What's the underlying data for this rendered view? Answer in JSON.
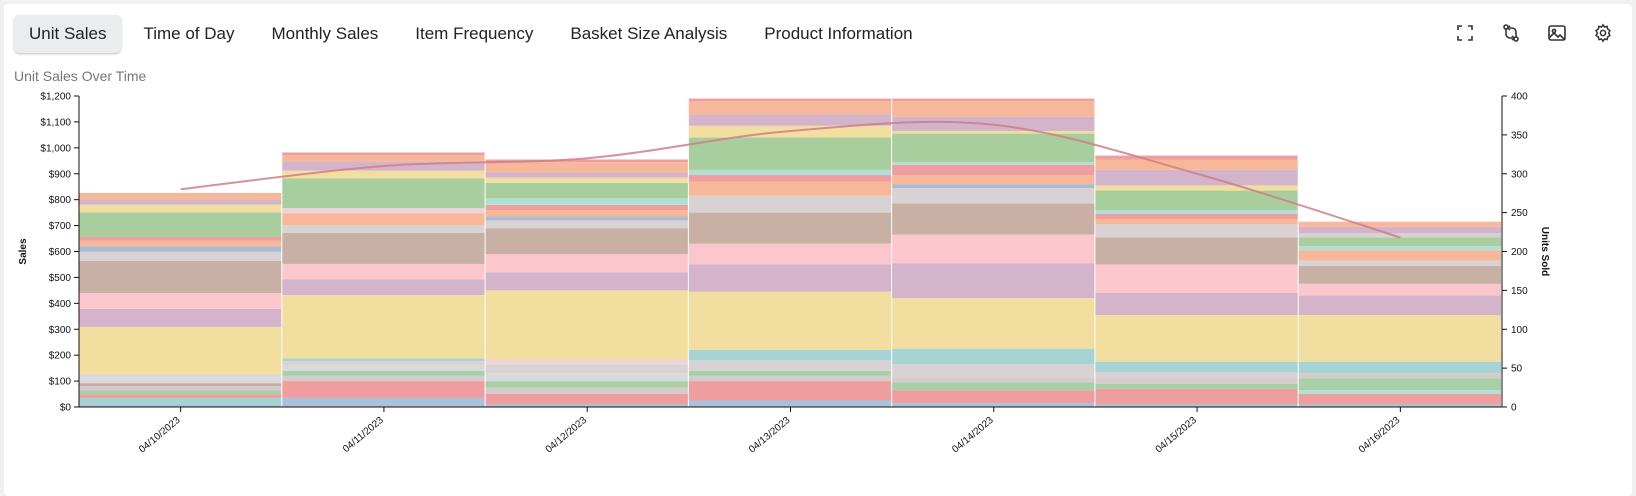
{
  "tabs": [
    {
      "label": "Unit Sales",
      "active": true
    },
    {
      "label": "Time of Day",
      "active": false
    },
    {
      "label": "Monthly Sales",
      "active": false
    },
    {
      "label": "Item Frequency",
      "active": false
    },
    {
      "label": "Basket Size Analysis",
      "active": false
    },
    {
      "label": "Product Information",
      "active": false
    }
  ],
  "toolbar": {
    "icons": [
      "fullscreen-icon",
      "swap-icon",
      "image-icon",
      "settings-icon"
    ]
  },
  "chart_data": {
    "type": "bar",
    "stacked": true,
    "title": "Unit Sales Over Time",
    "ylabel": "Sales",
    "y2label": "Units Sold",
    "ylim": [
      0,
      1200
    ],
    "y2lim": [
      0,
      400
    ],
    "yticks": [
      "$0",
      "$100",
      "$200",
      "$300",
      "$400",
      "$500",
      "$600",
      "$700",
      "$800",
      "$900",
      "$1,000",
      "$1,100",
      "$1,200"
    ],
    "y2ticks": [
      "0",
      "50",
      "100",
      "150",
      "200",
      "250",
      "300",
      "350",
      "400"
    ],
    "categories": [
      "04/10/2023",
      "04/11/2023",
      "04/12/2023",
      "04/13/2023",
      "04/14/2023",
      "04/15/2023",
      "04/16/2023"
    ],
    "segment_colors": [
      "#a9c2dc",
      "#a6d3d3",
      "#ee9e9e",
      "#a8d0a8",
      "#d6cbcb",
      "#c8aca6",
      "#a9bcd7",
      "#b0e0d4",
      "#ecd8dc",
      "#f1dfa0",
      "#fbc7cc",
      "#d3b4ca",
      "#f6b898"
    ],
    "stacks": [
      [
        {
          "v": 10,
          "c": "#a9c2dc"
        },
        {
          "v": 25,
          "c": "#a6d3d3"
        },
        {
          "v": 14,
          "c": "#ee9e9e"
        },
        {
          "v": 15,
          "c": "#a8d0a8"
        },
        {
          "v": 16,
          "c": "#d6cbcb"
        },
        {
          "v": 12,
          "c": "#c8aca6"
        },
        {
          "v": 35,
          "c": "#dadada"
        },
        {
          "v": 182,
          "c": "#f2dfa0"
        },
        {
          "v": 70,
          "c": "#d3b4ca"
        },
        {
          "v": 60,
          "c": "#fbc7cc"
        },
        {
          "v": 125,
          "c": "#c8b0a5"
        },
        {
          "v": 35,
          "c": "#d8d2d2"
        },
        {
          "v": 20,
          "c": "#a9bcd7"
        },
        {
          "v": 22,
          "c": "#f6b898"
        },
        {
          "v": 15,
          "c": "#ee9e9e"
        },
        {
          "v": 95,
          "c": "#a8ce9e"
        },
        {
          "v": 30,
          "c": "#f2dfa0"
        },
        {
          "v": 20,
          "c": "#d3b4ca"
        },
        {
          "v": 25,
          "c": "#f6b898"
        }
      ],
      [
        {
          "v": 35,
          "c": "#a9c2dc"
        },
        {
          "v": 65,
          "c": "#ee9e9e"
        },
        {
          "v": 20,
          "c": "#d6cbcb"
        },
        {
          "v": 20,
          "c": "#a8d0a8"
        },
        {
          "v": 22,
          "c": "#dadada"
        },
        {
          "v": 15,
          "c": "#d8d2d2"
        },
        {
          "v": 10,
          "c": "#a6d3d3"
        },
        {
          "v": 245,
          "c": "#f2dfa0"
        },
        {
          "v": 60,
          "c": "#d3b4ca"
        },
        {
          "v": 60,
          "c": "#fbc7cc"
        },
        {
          "v": 120,
          "c": "#c8b0a5"
        },
        {
          "v": 30,
          "c": "#d8d2d2"
        },
        {
          "v": 45,
          "c": "#f6b898"
        },
        {
          "v": 20,
          "c": "#f0d3d6"
        },
        {
          "v": 115,
          "c": "#a8ce9e"
        },
        {
          "v": 30,
          "c": "#f2dfa0"
        },
        {
          "v": 35,
          "c": "#d3b4ca"
        },
        {
          "v": 25,
          "c": "#f6b898"
        },
        {
          "v": 10,
          "c": "#ee9e9e"
        }
      ],
      [
        {
          "v": 10,
          "c": "#a9c2dc"
        },
        {
          "v": 40,
          "c": "#ee9e9e"
        },
        {
          "v": 25,
          "c": "#d6cbcb"
        },
        {
          "v": 25,
          "c": "#a8d0a8"
        },
        {
          "v": 30,
          "c": "#dadada"
        },
        {
          "v": 35,
          "c": "#d8d2d2"
        },
        {
          "v": 20,
          "c": "#f0d3d6"
        },
        {
          "v": 265,
          "c": "#f2dfa0"
        },
        {
          "v": 70,
          "c": "#d3b4ca"
        },
        {
          "v": 70,
          "c": "#fbc7cc"
        },
        {
          "v": 100,
          "c": "#c8b0a5"
        },
        {
          "v": 30,
          "c": "#d8d2d2"
        },
        {
          "v": 15,
          "c": "#a9bcd7"
        },
        {
          "v": 25,
          "c": "#f6b898"
        },
        {
          "v": 20,
          "c": "#ee9e9e"
        },
        {
          "v": 25,
          "c": "#b0e0d4"
        },
        {
          "v": 60,
          "c": "#a8ce9e"
        },
        {
          "v": 20,
          "c": "#f2dfa0"
        },
        {
          "v": 20,
          "c": "#d3b4ca"
        },
        {
          "v": 40,
          "c": "#f6b898"
        },
        {
          "v": 10,
          "c": "#ee9e9e"
        }
      ],
      [
        {
          "v": 25,
          "c": "#a9c2dc"
        },
        {
          "v": 75,
          "c": "#ee9e9e"
        },
        {
          "v": 20,
          "c": "#d6cbcb"
        },
        {
          "v": 20,
          "c": "#a8d0a8"
        },
        {
          "v": 40,
          "c": "#d8d2d2"
        },
        {
          "v": 40,
          "c": "#a6d3d3"
        },
        {
          "v": 225,
          "c": "#f2dfa0"
        },
        {
          "v": 105,
          "c": "#d3b4ca"
        },
        {
          "v": 80,
          "c": "#fbc7cc"
        },
        {
          "v": 120,
          "c": "#c8b0a5"
        },
        {
          "v": 65,
          "c": "#d8d2d2"
        },
        {
          "v": 55,
          "c": "#f6b898"
        },
        {
          "v": 25,
          "c": "#ee9e9e"
        },
        {
          "v": 20,
          "c": "#b0e0d4"
        },
        {
          "v": 125,
          "c": "#a8ce9e"
        },
        {
          "v": 45,
          "c": "#f2dfa0"
        },
        {
          "v": 45,
          "c": "#d3b4ca"
        },
        {
          "v": 50,
          "c": "#f6b898"
        },
        {
          "v": 10,
          "c": "#ee9e9e"
        }
      ],
      [
        {
          "v": 15,
          "c": "#a9c2dc"
        },
        {
          "v": 50,
          "c": "#ee9e9e"
        },
        {
          "v": 30,
          "c": "#a8d0a8"
        },
        {
          "v": 20,
          "c": "#d6cbcb"
        },
        {
          "v": 50,
          "c": "#d8d2d2"
        },
        {
          "v": 60,
          "c": "#a6d3d3"
        },
        {
          "v": 195,
          "c": "#f2dfa0"
        },
        {
          "v": 135,
          "c": "#d3b4ca"
        },
        {
          "v": 110,
          "c": "#fbc7cc"
        },
        {
          "v": 120,
          "c": "#c8b0a5"
        },
        {
          "v": 60,
          "c": "#d8d2d2"
        },
        {
          "v": 15,
          "c": "#a9bcd7"
        },
        {
          "v": 35,
          "c": "#f6b898"
        },
        {
          "v": 40,
          "c": "#ee9e9e"
        },
        {
          "v": 10,
          "c": "#b0e0d4"
        },
        {
          "v": 110,
          "c": "#a8ce9e"
        },
        {
          "v": 10,
          "c": "#f2dfa0"
        },
        {
          "v": 55,
          "c": "#d3b4ca"
        },
        {
          "v": 60,
          "c": "#f6b898"
        },
        {
          "v": 10,
          "c": "#ee9e9e"
        }
      ],
      [
        {
          "v": 10,
          "c": "#a9c2dc"
        },
        {
          "v": 60,
          "c": "#ee9e9e"
        },
        {
          "v": 20,
          "c": "#a8d0a8"
        },
        {
          "v": 20,
          "c": "#d6cbcb"
        },
        {
          "v": 25,
          "c": "#d8d2d2"
        },
        {
          "v": 40,
          "c": "#a6d3d3"
        },
        {
          "v": 180,
          "c": "#f2dfa0"
        },
        {
          "v": 85,
          "c": "#d3b4ca"
        },
        {
          "v": 110,
          "c": "#fbc7cc"
        },
        {
          "v": 105,
          "c": "#c8b0a5"
        },
        {
          "v": 50,
          "c": "#d8d2d2"
        },
        {
          "v": 20,
          "c": "#f6b898"
        },
        {
          "v": 20,
          "c": "#ee9e9e"
        },
        {
          "v": 15,
          "c": "#b0e0d4"
        },
        {
          "v": 75,
          "c": "#a8ce9e"
        },
        {
          "v": 20,
          "c": "#f2dfa0"
        },
        {
          "v": 60,
          "c": "#d3b4ca"
        },
        {
          "v": 40,
          "c": "#f6b898"
        },
        {
          "v": 15,
          "c": "#ee9e9e"
        }
      ],
      [
        {
          "v": 10,
          "c": "#a9c2dc"
        },
        {
          "v": 40,
          "c": "#ee9e9e"
        },
        {
          "v": 15,
          "c": "#b0e0d4"
        },
        {
          "v": 45,
          "c": "#a8d0a8"
        },
        {
          "v": 20,
          "c": "#d6cbcb"
        },
        {
          "v": 45,
          "c": "#a6d3d3"
        },
        {
          "v": 180,
          "c": "#f2dfa0"
        },
        {
          "v": 75,
          "c": "#d3b4ca"
        },
        {
          "v": 45,
          "c": "#fbc7cc"
        },
        {
          "v": 70,
          "c": "#c8b0a5"
        },
        {
          "v": 20,
          "c": "#d8d2d2"
        },
        {
          "v": 40,
          "c": "#f6b898"
        },
        {
          "v": 15,
          "c": "#b0e0d4"
        },
        {
          "v": 35,
          "c": "#a8ce9e"
        },
        {
          "v": 15,
          "c": "#d8d2d2"
        },
        {
          "v": 25,
          "c": "#d3b4ca"
        },
        {
          "v": 20,
          "c": "#f6b898"
        }
      ]
    ],
    "line": {
      "color": "#cc7f88",
      "values": [
        280,
        310,
        320,
        355,
        363,
        300,
        218
      ]
    }
  }
}
